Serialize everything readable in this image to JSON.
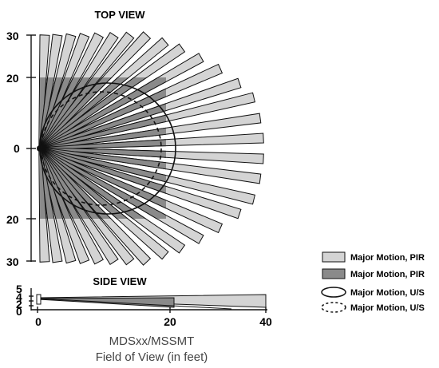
{
  "top_view": {
    "title": "TOP VIEW",
    "y_ticks": [
      "30",
      "20",
      "0",
      "20",
      "30"
    ]
  },
  "side_view": {
    "title": "SIDE VIEW",
    "y_ticks": [
      "5",
      "4",
      "2",
      "0"
    ],
    "x_ticks": [
      "0",
      "20",
      "40"
    ]
  },
  "legend": [
    {
      "label": "Major Motion, PIR",
      "swatch": "light-gray-box",
      "color": "#d4d4d4"
    },
    {
      "label": "Major Motion, PIR",
      "swatch": "dark-gray-box",
      "color": "#8a8a8a"
    },
    {
      "label": "Major Motion, U/S",
      "swatch": "solid-ellipse"
    },
    {
      "label": "Major Motion, U/S",
      "swatch": "dashed-ellipse"
    }
  ],
  "caption": {
    "line1": "MDSxx/MSSMT",
    "line2": "Field of View (in feet)"
  },
  "colors": {
    "pir_light": "#d4d4d4",
    "pir_dark": "#8a8a8a",
    "outline": "#111111"
  }
}
